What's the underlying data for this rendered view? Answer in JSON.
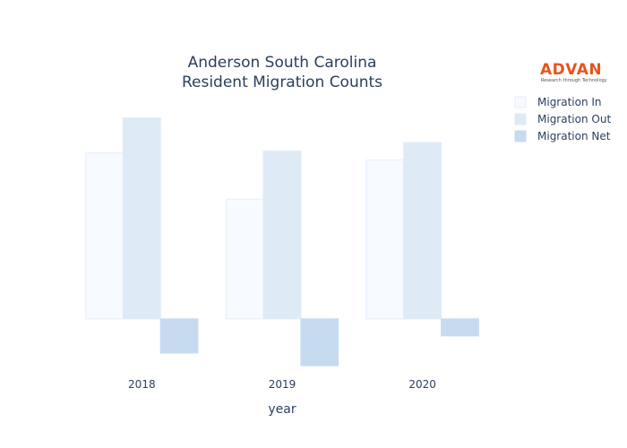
{
  "chart_data": {
    "type": "bar",
    "title": [
      "Anderson South Carolina",
      "Resident Migration Counts"
    ],
    "xlabel": "year",
    "ylabel": "",
    "categories": [
      "2018",
      "2019",
      "2020"
    ],
    "series": [
      {
        "name": "Migration In",
        "values": [
          4850,
          3500,
          4640
        ],
        "color": "#f7fbff",
        "stroke": "#e3eef8"
      },
      {
        "name": "Migration Out",
        "values": [
          5870,
          4900,
          5150
        ],
        "color": "#deebf7",
        "stroke": "#deebf7"
      },
      {
        "name": "Migration Net",
        "values": [
          -1000,
          -1370,
          -500
        ],
        "color": "#c6dbef",
        "stroke": "#c6dbef"
      }
    ],
    "ylim": [
      -1550,
      6700
    ],
    "grid": false,
    "legend_position": "top-right"
  },
  "logo": {
    "text": "ADVAN",
    "tagline": "Research through Technology",
    "color": "#e8541f"
  }
}
